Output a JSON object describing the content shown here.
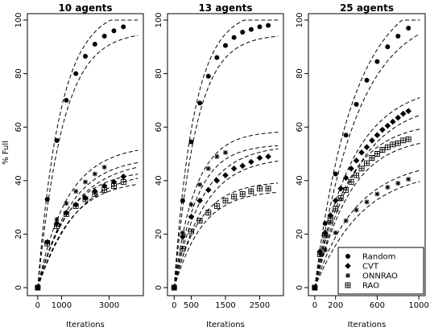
{
  "chart_data": {
    "type": "scatter",
    "ylabel": "% Full",
    "legend": {
      "placement": "bottom-right of third panel",
      "entries": [
        {
          "label": "Random",
          "marker": "circle"
        },
        {
          "label": "CVT",
          "marker": "diamond"
        },
        {
          "label": "ONNRAO",
          "marker": "asterisk"
        },
        {
          "label": "RAO",
          "marker": "boxed-plus"
        }
      ]
    },
    "panels": [
      {
        "title": "10 agents",
        "xlabel": "Iterations",
        "xlim": [
          -300,
          4300
        ],
        "ylim": [
          0,
          100
        ],
        "xticks": [
          0,
          1000,
          3000
        ],
        "yticks": [
          0,
          20,
          40,
          60,
          80,
          100
        ],
        "series": [
          {
            "name": "Random",
            "marker": "circle",
            "x": [
              0,
              400,
              800,
              1200,
              1600,
              2000,
              2400,
              2800,
              3200,
              3600
            ],
            "y": [
              0,
              33,
              55,
              70,
              80,
              86.5,
              91,
              94,
              96,
              97.5
            ]
          },
          {
            "name": "CVT",
            "marker": "diamond",
            "x": [
              0,
              400,
              800,
              1200,
              1600,
              2000,
              2400,
              2800,
              3200,
              3600
            ],
            "y": [
              0,
              17,
              24,
              28,
              31,
              33.5,
              36,
              38,
              39.5,
              41.5
            ]
          },
          {
            "name": "ONNRAO",
            "marker": "asterisk",
            "x": [
              0,
              400,
              800,
              1200,
              1600,
              2000,
              2400,
              2800
            ],
            "y": [
              0,
              17,
              25.5,
              31.5,
              36,
              39.5,
              42.5,
              45
            ]
          },
          {
            "name": "RAO",
            "marker": "boxed-plus",
            "x": [
              0,
              400,
              800,
              1200,
              1600,
              2000,
              2400,
              2800,
              3200,
              3600
            ],
            "y": [
              0,
              16.5,
              23,
              27.5,
              30.5,
              33,
              35,
              36.5,
              38,
              39.5
            ]
          }
        ]
      },
      {
        "title": "13 agents",
        "xlabel": "Iterations",
        "xlim": [
          -100,
          3100
        ],
        "ylim": [
          0,
          100
        ],
        "xticks": [
          0,
          500,
          1500,
          2500
        ],
        "yticks": [
          0,
          20,
          40,
          60,
          80,
          100
        ],
        "series": [
          {
            "name": "Random",
            "marker": "circle",
            "x": [
              0,
              250,
              500,
              750,
              1000,
              1250,
              1500,
              1750,
              2000,
              2250,
              2500,
              2750
            ],
            "y": [
              0,
              32.5,
              54.5,
              69,
              79,
              86,
              90.5,
              93.5,
              95.5,
              96.5,
              97.5,
              98
            ]
          },
          {
            "name": "CVT",
            "marker": "diamond",
            "x": [
              0,
              250,
              500,
              750,
              1000,
              1250,
              1500,
              1750,
              2000,
              2250,
              2500,
              2750
            ],
            "y": [
              0,
              19,
              26.5,
              32.5,
              36.5,
              40,
              42,
              44.5,
              45.5,
              47,
              48.5,
              49
            ]
          },
          {
            "name": "ONNRAO",
            "marker": "asterisk",
            "x": [
              0,
              250,
              500,
              750,
              1000,
              1250,
              1500
            ],
            "y": [
              0,
              20.5,
              31,
              38.5,
              44.5,
              49,
              50.5
            ]
          },
          {
            "name": "RAO",
            "marker": "boxed-plus",
            "x": [
              0,
              250,
              500,
              750,
              1000,
              1250,
              1500,
              1750,
              2000,
              2250,
              2500,
              2750
            ],
            "y": [
              0,
              14.5,
              21,
              25,
              28,
              30.5,
              32.5,
              34,
              35,
              36,
              37,
              37
            ]
          }
        ]
      },
      {
        "title": "25 agents",
        "xlabel": "Iterations",
        "xlim": [
          -30,
          1030
        ],
        "ylim": [
          0,
          100
        ],
        "xticks": [
          0,
          200,
          600,
          1000
        ],
        "yticks": [
          0,
          20,
          40,
          60,
          80,
          100
        ],
        "series": [
          {
            "name": "Random",
            "marker": "circle",
            "x": [
              0,
              100,
              200,
              300,
              400,
              500,
              600,
              700,
              800,
              900
            ],
            "y": [
              0,
              24,
              42.5,
              57,
              68.5,
              77.5,
              84.5,
              90,
              94,
              97
            ]
          },
          {
            "name": "CVT",
            "marker": "diamond",
            "x": [
              0,
              50,
              100,
              150,
              200,
              250,
              300,
              350,
              400,
              450,
              500,
              550,
              600,
              650,
              700,
              750,
              800,
              850,
              900
            ],
            "y": [
              0,
              13.5,
              20.5,
              27,
              32.5,
              37,
              41,
              44.5,
              47.5,
              50.5,
              52.5,
              55,
              57,
              59,
              60.5,
              62,
              63.5,
              65,
              66
            ]
          },
          {
            "name": "ONNRAO",
            "marker": "asterisk",
            "x": [
              0,
              100,
              200,
              300,
              400,
              500,
              600,
              700,
              800,
              900
            ],
            "y": [
              0,
              14,
              20.5,
              25,
              29,
              32,
              35,
              37.5,
              39,
              40.5
            ]
          },
          {
            "name": "RAO",
            "marker": "boxed-plus",
            "x": [
              0,
              50,
              100,
              150,
              200,
              250,
              300,
              350,
              400,
              450,
              500,
              550,
              600,
              650,
              700,
              750,
              800,
              850,
              900
            ],
            "y": [
              0,
              12.5,
              19.5,
              25,
              29.5,
              33.5,
              36.5,
              39.5,
              42,
              44.5,
              46.5,
              48.5,
              50,
              51.5,
              52.5,
              53.5,
              54,
              55,
              55.5
            ]
          }
        ]
      }
    ]
  }
}
